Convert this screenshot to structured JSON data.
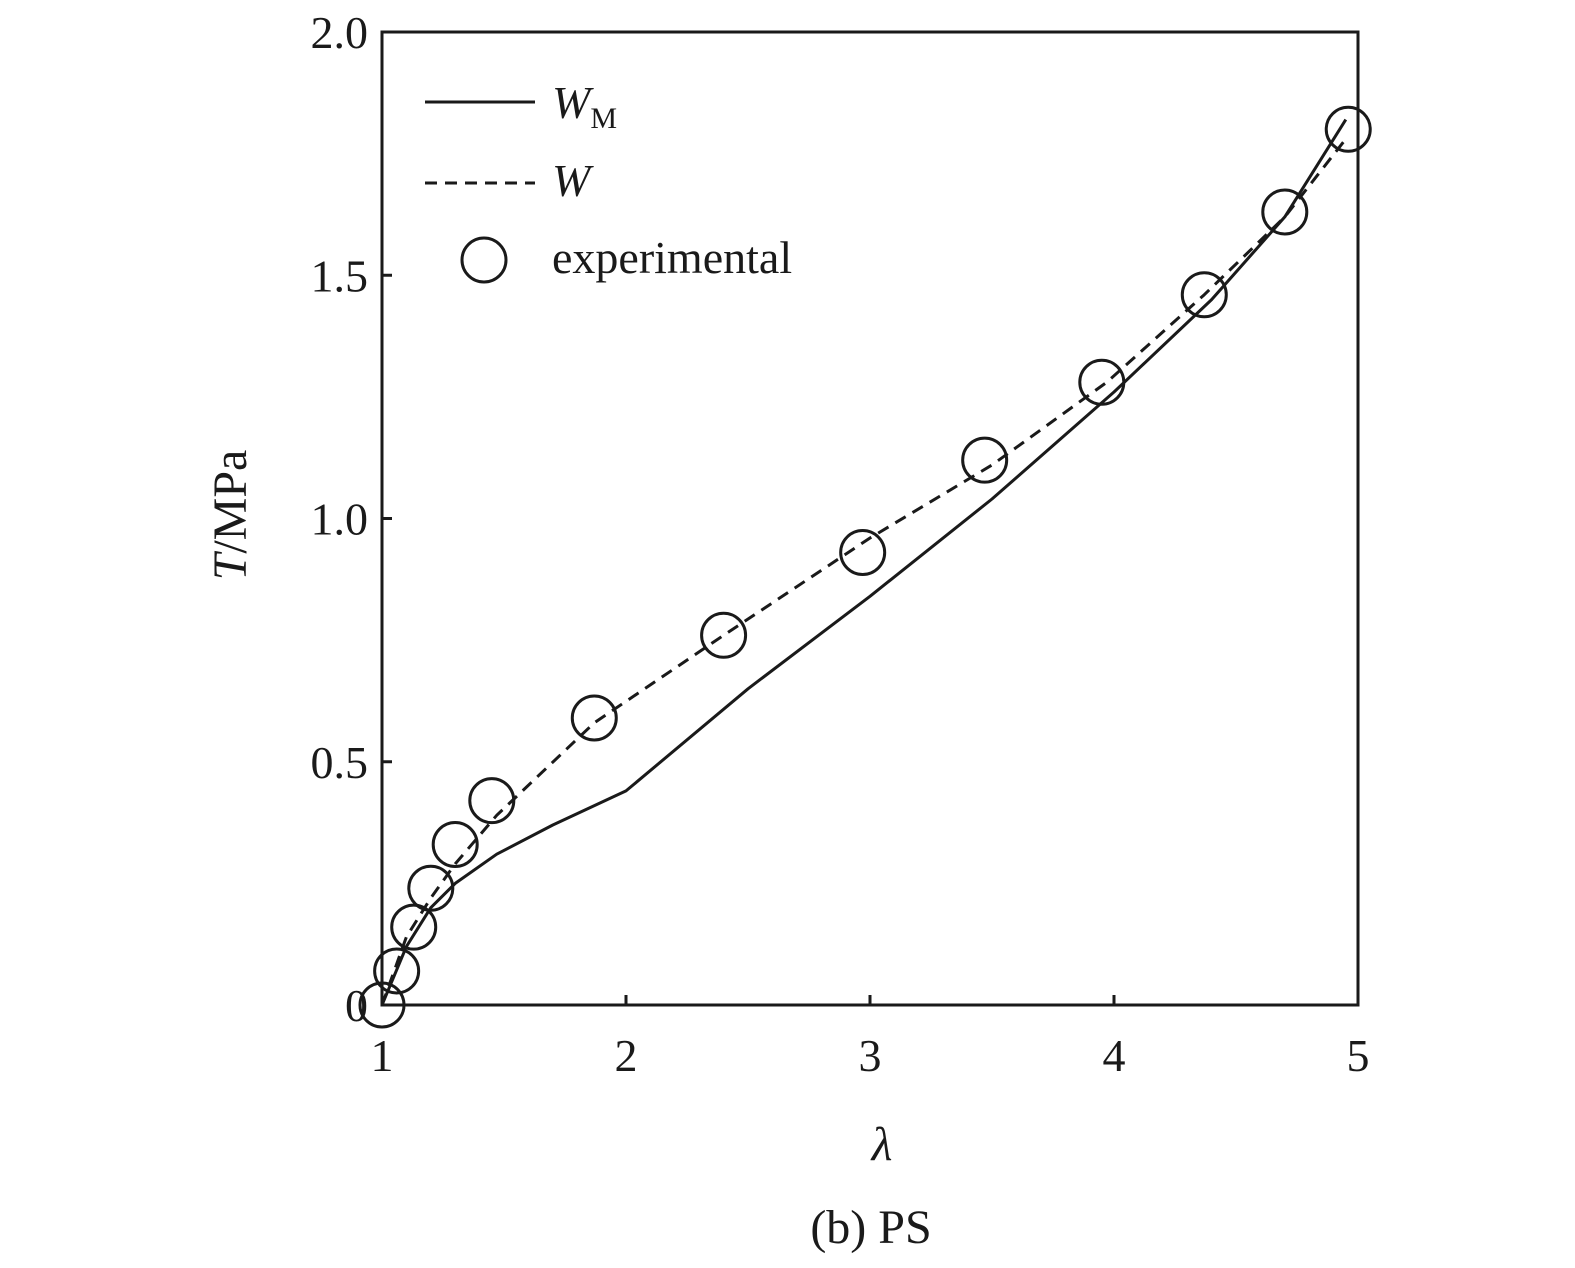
{
  "caption": "(b) PS",
  "chart_data": {
    "type": "line",
    "xlabel": "λ",
    "ylabel_italic": "T",
    "ylabel_rest": "/MPa",
    "xlim": [
      1,
      5
    ],
    "ylim": [
      0,
      2.0
    ],
    "x_ticks": [
      1,
      2,
      3,
      4,
      5
    ],
    "x_tick_labels": [
      "1",
      "2",
      "3",
      "4",
      "5"
    ],
    "y_ticks": [
      0,
      0.5,
      1.0,
      1.5,
      2.0
    ],
    "y_tick_labels": [
      "0",
      "0.5",
      "1.0",
      "1.5",
      "2.0"
    ],
    "grid": false,
    "legend_position": "top-left",
    "series": [
      {
        "name": "W_M",
        "legend_main": "W",
        "legend_sub": "M",
        "style": "solid",
        "x": [
          1.0,
          1.1,
          1.2,
          1.3,
          1.47,
          1.7,
          2.0,
          2.5,
          3.0,
          3.5,
          4.0,
          4.4,
          4.7,
          4.95
        ],
        "y": [
          0.0,
          0.12,
          0.2,
          0.25,
          0.31,
          0.37,
          0.44,
          0.65,
          0.84,
          1.04,
          1.26,
          1.45,
          1.62,
          1.82
        ]
      },
      {
        "name": "W",
        "legend_main": "W",
        "legend_sub": "",
        "style": "dashed",
        "x": [
          1.0,
          1.1,
          1.2,
          1.3,
          1.47,
          1.87,
          2.4,
          3.0,
          3.5,
          3.97,
          4.37,
          4.7,
          4.95
        ],
        "y": [
          0.0,
          0.14,
          0.22,
          0.29,
          0.39,
          0.58,
          0.76,
          0.96,
          1.11,
          1.28,
          1.46,
          1.62,
          1.78
        ]
      },
      {
        "name": "experimental",
        "legend_main": "experimental",
        "legend_sub": "",
        "style": "marker-circle",
        "x": [
          1.0,
          1.06,
          1.13,
          1.2,
          1.3,
          1.45,
          1.87,
          2.4,
          2.97,
          3.47,
          3.95,
          4.37,
          4.7,
          4.96
        ],
        "y": [
          0.0,
          0.07,
          0.16,
          0.24,
          0.33,
          0.42,
          0.59,
          0.76,
          0.93,
          1.12,
          1.28,
          1.46,
          1.63,
          1.8
        ]
      }
    ]
  }
}
